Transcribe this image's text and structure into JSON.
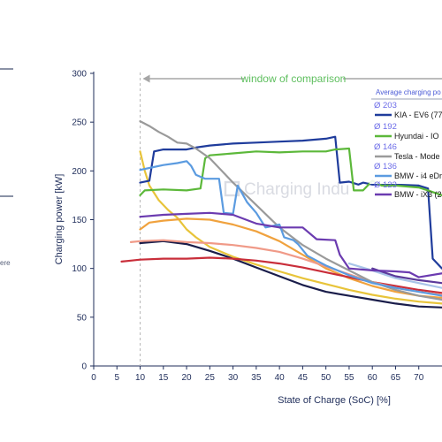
{
  "side_text": "ere",
  "chart_data": {
    "type": "line",
    "xlabel": "State of Charge (SoC) [%]",
    "ylabel": "Charging power [kW]",
    "xlim": [
      0,
      75
    ],
    "ylim": [
      0,
      300
    ],
    "xticks": [
      0,
      5,
      10,
      15,
      20,
      25,
      30,
      35,
      40,
      45,
      50,
      55,
      60,
      65,
      70
    ],
    "yticks": [
      0,
      50,
      100,
      150,
      200,
      250,
      300
    ],
    "grid": false,
    "legend_title": "Average charging po",
    "legend_position": "top-right",
    "watermark": "Charging Indu",
    "window": {
      "label": "window of comparison",
      "start": 10
    },
    "series": [
      {
        "name": "KIA - EV6 (77",
        "average": "Ø 203",
        "color": "#1f3c9c",
        "legend": true,
        "points": [
          [
            10,
            188
          ],
          [
            12,
            190
          ],
          [
            13,
            220
          ],
          [
            15,
            222
          ],
          [
            20,
            222
          ],
          [
            22,
            224
          ],
          [
            25,
            226
          ],
          [
            30,
            228
          ],
          [
            35,
            229
          ],
          [
            40,
            230
          ],
          [
            45,
            231
          ],
          [
            50,
            233
          ],
          [
            52,
            235
          ],
          [
            53,
            188
          ],
          [
            55,
            189
          ],
          [
            57,
            186
          ],
          [
            58,
            188
          ],
          [
            60,
            186
          ],
          [
            65,
            186
          ],
          [
            70,
            185
          ],
          [
            72,
            182
          ],
          [
            73,
            110
          ],
          [
            75,
            100
          ]
        ]
      },
      {
        "name": "Hyundai - IO",
        "average": "Ø 192",
        "color": "#5cb83a",
        "legend": true,
        "points": [
          [
            10,
            175
          ],
          [
            11,
            180
          ],
          [
            15,
            181
          ],
          [
            20,
            180
          ],
          [
            23,
            182
          ],
          [
            24,
            213
          ],
          [
            25,
            216
          ],
          [
            30,
            218
          ],
          [
            35,
            220
          ],
          [
            40,
            219
          ],
          [
            45,
            220
          ],
          [
            50,
            220
          ],
          [
            52,
            222
          ],
          [
            55,
            223
          ],
          [
            56,
            180
          ],
          [
            58,
            180
          ],
          [
            60,
            190
          ],
          [
            62,
            185
          ],
          [
            65,
            185
          ],
          [
            70,
            183
          ],
          [
            72,
            180
          ],
          [
            75,
            175
          ]
        ]
      },
      {
        "name": "Tesla - Mode",
        "average": "Ø 146",
        "color": "#9a9a9a",
        "legend": true,
        "points": [
          [
            10,
            251
          ],
          [
            12,
            246
          ],
          [
            14,
            240
          ],
          [
            16,
            235
          ],
          [
            18,
            229
          ],
          [
            20,
            228
          ],
          [
            22,
            223
          ],
          [
            25,
            213
          ],
          [
            30,
            188
          ],
          [
            35,
            165
          ],
          [
            40,
            142
          ],
          [
            45,
            124
          ],
          [
            50,
            110
          ],
          [
            55,
            98
          ],
          [
            60,
            86
          ],
          [
            65,
            78
          ],
          [
            70,
            72
          ],
          [
            75,
            68
          ]
        ]
      },
      {
        "name": "BMW - i4 eDr",
        "average": "Ø 136",
        "color": "#5b9be0",
        "legend": true,
        "points": [
          [
            10,
            201
          ],
          [
            12,
            203
          ],
          [
            15,
            206
          ],
          [
            18,
            208
          ],
          [
            20,
            210
          ],
          [
            21,
            205
          ],
          [
            22,
            196
          ],
          [
            24,
            192
          ],
          [
            27,
            192
          ],
          [
            28,
            157
          ],
          [
            30,
            156
          ],
          [
            31,
            185
          ],
          [
            33,
            168
          ],
          [
            35,
            157
          ],
          [
            37,
            142
          ],
          [
            40,
            145
          ],
          [
            41,
            132
          ],
          [
            43,
            129
          ],
          [
            44,
            125
          ],
          [
            46,
            113
          ],
          [
            48,
            108
          ],
          [
            50,
            103
          ],
          [
            55,
            93
          ],
          [
            60,
            85
          ],
          [
            65,
            80
          ],
          [
            70,
            76
          ],
          [
            75,
            72
          ]
        ]
      },
      {
        "name": "BMW - iX3 (2",
        "average": "Ø 123",
        "color": "#6b3bb0",
        "legend": true,
        "points": [
          [
            10,
            153
          ],
          [
            15,
            155
          ],
          [
            20,
            156
          ],
          [
            25,
            157
          ],
          [
            30,
            155
          ],
          [
            35,
            146
          ],
          [
            40,
            142
          ],
          [
            45,
            142
          ],
          [
            48,
            130
          ],
          [
            52,
            129
          ],
          [
            53,
            114
          ],
          [
            55,
            100
          ],
          [
            60,
            98
          ],
          [
            65,
            97
          ],
          [
            68,
            96
          ],
          [
            70,
            91
          ],
          [
            75,
            95
          ]
        ]
      },
      {
        "color": "#1a1d4a",
        "legend": false,
        "points": [
          [
            10,
            126
          ],
          [
            15,
            128
          ],
          [
            20,
            125
          ],
          [
            25,
            118
          ],
          [
            30,
            110
          ],
          [
            35,
            101
          ],
          [
            40,
            92
          ],
          [
            45,
            83
          ],
          [
            50,
            76
          ],
          [
            55,
            72
          ],
          [
            60,
            68
          ],
          [
            65,
            64
          ],
          [
            70,
            61
          ],
          [
            75,
            60
          ]
        ]
      },
      {
        "color": "#e8c43a",
        "legend": false,
        "points": [
          [
            10,
            220
          ],
          [
            11,
            200
          ],
          [
            12,
            185
          ],
          [
            14,
            170
          ],
          [
            16,
            160
          ],
          [
            18,
            152
          ],
          [
            20,
            140
          ],
          [
            22,
            132
          ],
          [
            25,
            122
          ],
          [
            30,
            112
          ],
          [
            35,
            104
          ],
          [
            40,
            97
          ],
          [
            45,
            90
          ],
          [
            50,
            84
          ],
          [
            55,
            78
          ],
          [
            60,
            73
          ],
          [
            65,
            69
          ],
          [
            70,
            66
          ],
          [
            75,
            64
          ]
        ]
      },
      {
        "color": "#f0a23e",
        "legend": false,
        "points": [
          [
            10,
            140
          ],
          [
            12,
            147
          ],
          [
            15,
            149
          ],
          [
            20,
            151
          ],
          [
            25,
            150
          ],
          [
            30,
            145
          ],
          [
            35,
            138
          ],
          [
            40,
            128
          ],
          [
            45,
            114
          ],
          [
            50,
            100
          ],
          [
            55,
            90
          ],
          [
            60,
            82
          ],
          [
            65,
            76
          ],
          [
            70,
            72
          ],
          [
            75,
            70
          ]
        ]
      },
      {
        "color": "#c92e3a",
        "legend": false,
        "points": [
          [
            6,
            107
          ],
          [
            8,
            108
          ],
          [
            10,
            109
          ],
          [
            15,
            110
          ],
          [
            20,
            110
          ],
          [
            25,
            111
          ],
          [
            30,
            110
          ],
          [
            35,
            108
          ],
          [
            40,
            105
          ],
          [
            45,
            101
          ],
          [
            50,
            96
          ],
          [
            55,
            91
          ],
          [
            60,
            86
          ],
          [
            65,
            82
          ],
          [
            70,
            78
          ],
          [
            75,
            75
          ]
        ]
      },
      {
        "color": "#f09a88",
        "legend": false,
        "points": [
          [
            8,
            127
          ],
          [
            10,
            128
          ],
          [
            15,
            129
          ],
          [
            20,
            127
          ],
          [
            25,
            126
          ],
          [
            30,
            124
          ],
          [
            35,
            121
          ],
          [
            40,
            117
          ],
          [
            45,
            110
          ],
          [
            50,
            102
          ],
          [
            55,
            94
          ],
          [
            60,
            86
          ],
          [
            65,
            80
          ],
          [
            70,
            76
          ],
          [
            75,
            73
          ]
        ]
      },
      {
        "color": "#a8c4e8",
        "legend": false,
        "points": [
          [
            55,
            105
          ],
          [
            60,
            98
          ],
          [
            65,
            90
          ],
          [
            70,
            85
          ],
          [
            75,
            80
          ]
        ]
      },
      {
        "color": "#5b3a9a",
        "legend": false,
        "points": [
          [
            60,
            100
          ],
          [
            65,
            92
          ],
          [
            70,
            88
          ],
          [
            75,
            85
          ]
        ]
      }
    ]
  }
}
